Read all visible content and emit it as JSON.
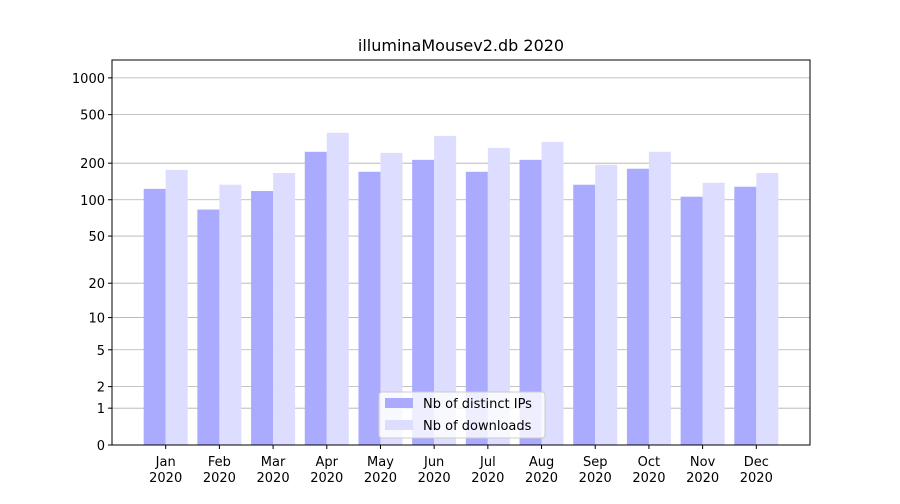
{
  "chart_data": {
    "type": "bar",
    "title": "illuminaMousev2.db 2020",
    "categories": [
      "Jan\n2020",
      "Feb\n2020",
      "Mar\n2020",
      "Apr\n2020",
      "May\n2020",
      "Jun\n2020",
      "Jul\n2020",
      "Aug\n2020",
      "Sep\n2020",
      "Oct\n2020",
      "Nov\n2020",
      "Dec\n2020"
    ],
    "series": [
      {
        "name": "Nb of distinct IPs",
        "color": "#aaaaff",
        "values": [
          123,
          83,
          118,
          248,
          170,
          213,
          170,
          213,
          133,
          180,
          106,
          128
        ]
      },
      {
        "name": "Nb of downloads",
        "color": "#ddddff",
        "values": [
          176,
          133,
          166,
          355,
          243,
          335,
          267,
          299,
          194,
          248,
          138,
          166
        ]
      }
    ],
    "yscale": "log1p",
    "ylim": [
      0,
      1400
    ],
    "yticks": [
      0,
      1,
      2,
      5,
      10,
      20,
      50,
      100,
      200,
      500,
      1000
    ],
    "grid": true,
    "legend": "lower center"
  }
}
